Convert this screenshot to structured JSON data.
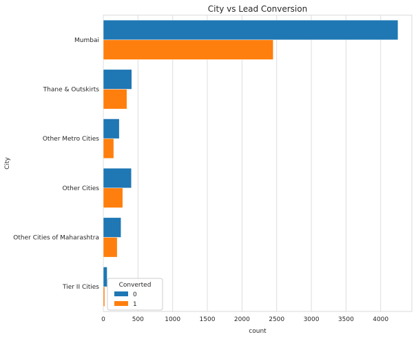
{
  "chart_data": {
    "type": "bar",
    "orientation": "horizontal",
    "title": "City vs Lead Conversion",
    "xlabel": "count",
    "ylabel": "City",
    "categories": [
      "Mumbai",
      "Thane & Outskirts",
      "Other Metro Cities",
      "Other Cities",
      "Other Cities of Maharashtra",
      "Tier II Cities"
    ],
    "series": [
      {
        "name": "0",
        "color": "#1f77b4",
        "values": [
          4250,
          410,
          230,
          405,
          255,
          55
        ]
      },
      {
        "name": "1",
        "color": "#ff7f0e",
        "values": [
          2450,
          340,
          150,
          280,
          200,
          20
        ]
      }
    ],
    "xlim": [
      0,
      4450
    ],
    "xticks": [
      0,
      500,
      1000,
      1500,
      2000,
      2500,
      3000,
      3500,
      4000
    ],
    "grid": "x",
    "legend": {
      "title": "Converted",
      "placement": "bottom-left",
      "entries": [
        "0",
        "1"
      ]
    }
  }
}
